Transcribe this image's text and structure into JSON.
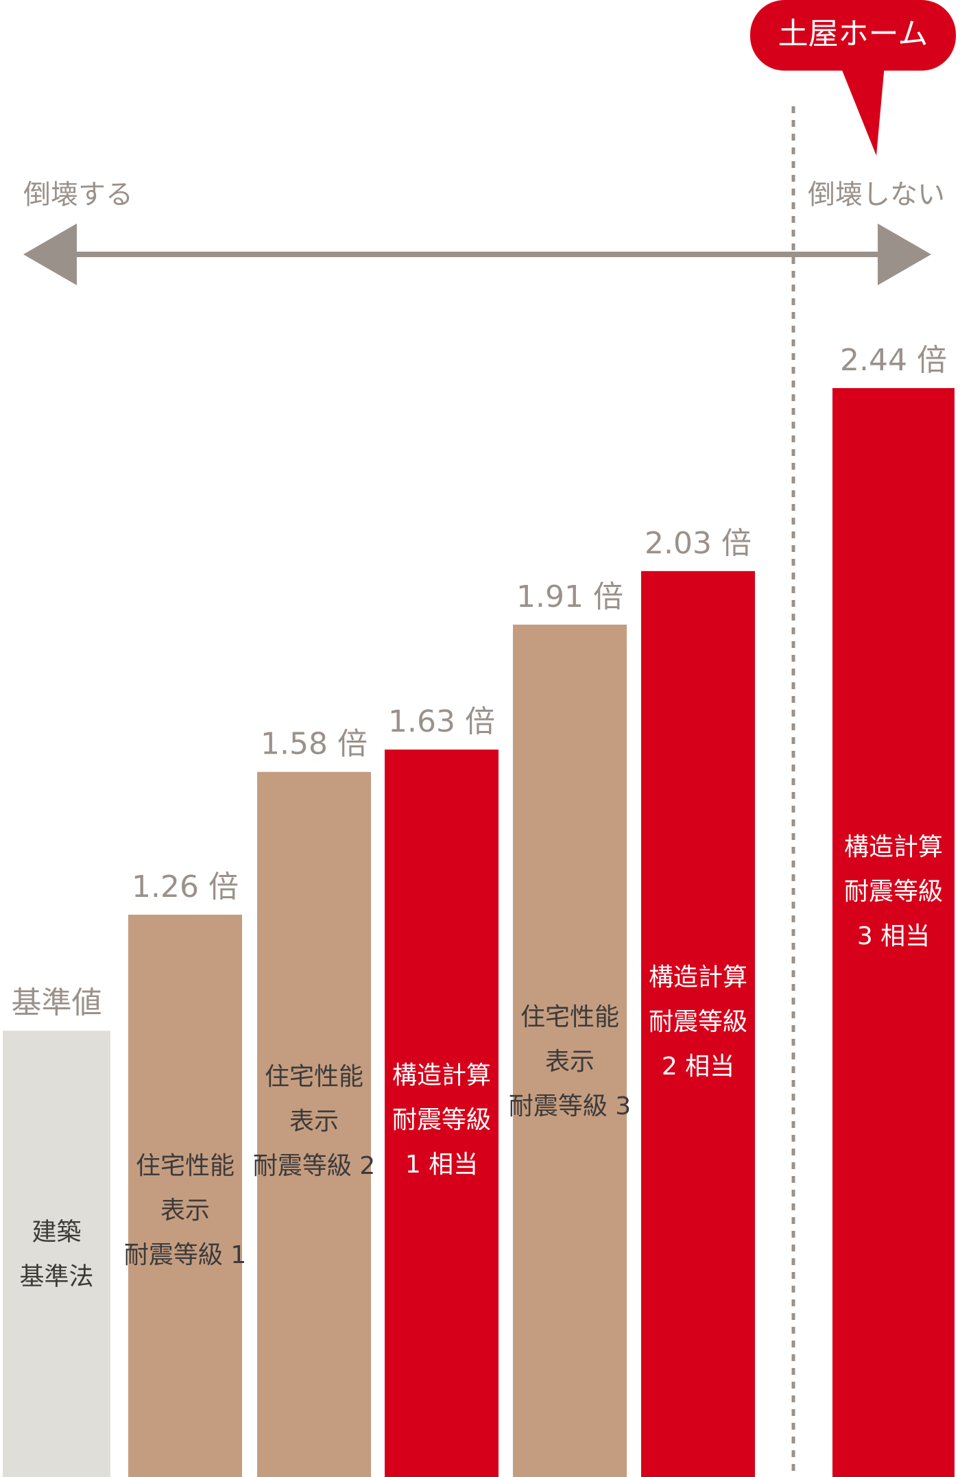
{
  "chart_data": {
    "type": "bar",
    "categories": [
      [
        "建築",
        "基準法"
      ],
      [
        "住宅性能",
        "表示",
        "耐震等級 1"
      ],
      [
        "住宅性能",
        "表示",
        "耐震等級 2"
      ],
      [
        "構造計算",
        "耐震等級",
        "1 相当"
      ],
      [
        "住宅性能",
        "表示",
        "耐震等級 3"
      ],
      [
        "構造計算",
        "耐震等級",
        "2 相当"
      ],
      [
        "構造計算",
        "耐震等級",
        "3 相当"
      ]
    ],
    "values": [
      1,
      1.26,
      1.58,
      1.63,
      1.91,
      2.03,
      2.44
    ],
    "value_labels": [
      "基準値",
      "1.26 倍",
      "1.58 倍",
      "1.63 倍",
      "1.91 倍",
      "2.03 倍",
      "2.44 倍"
    ],
    "colors": [
      "#e0ded8",
      "#c49d80",
      "#c49d80",
      "#d7001a",
      "#c49d80",
      "#d7001a",
      "#d7001a"
    ],
    "annotations": {
      "left": "倒壊する",
      "right": "倒壊しない",
      "callout": "土屋ホーム"
    }
  }
}
